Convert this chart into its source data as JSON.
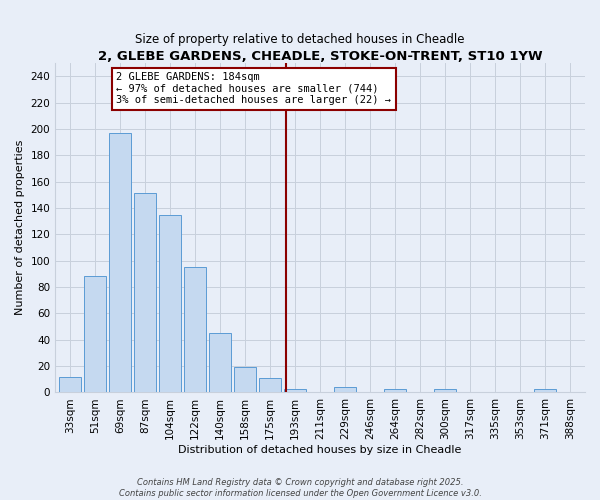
{
  "title": "2, GLEBE GARDENS, CHEADLE, STOKE-ON-TRENT, ST10 1YW",
  "subtitle": "Size of property relative to detached houses in Cheadle",
  "xlabel": "Distribution of detached houses by size in Cheadle",
  "ylabel": "Number of detached properties",
  "bar_labels": [
    "33sqm",
    "51sqm",
    "69sqm",
    "87sqm",
    "104sqm",
    "122sqm",
    "140sqm",
    "158sqm",
    "175sqm",
    "193sqm",
    "211sqm",
    "229sqm",
    "246sqm",
    "264sqm",
    "282sqm",
    "300sqm",
    "317sqm",
    "335sqm",
    "353sqm",
    "371sqm",
    "388sqm"
  ],
  "bar_values": [
    12,
    88,
    197,
    151,
    135,
    95,
    45,
    19,
    11,
    3,
    0,
    4,
    0,
    3,
    0,
    3,
    0,
    0,
    0,
    3,
    0
  ],
  "bar_color": "#c5d9f0",
  "bar_edge_color": "#5b9bd5",
  "vline_x": 8.65,
  "vline_color": "#8b0000",
  "annotation_title": "2 GLEBE GARDENS: 184sqm",
  "annotation_line1": "← 97% of detached houses are smaller (744)",
  "annotation_line2": "3% of semi-detached houses are larger (22) →",
  "annotation_box_facecolor": "#ffffff",
  "annotation_box_edgecolor": "#8b0000",
  "ylim": [
    0,
    250
  ],
  "yticks": [
    0,
    20,
    40,
    60,
    80,
    100,
    120,
    140,
    160,
    180,
    200,
    220,
    240
  ],
  "footer1": "Contains HM Land Registry data © Crown copyright and database right 2025.",
  "footer2": "Contains public sector information licensed under the Open Government Licence v3.0.",
  "bg_color": "#e8eef8",
  "grid_color": "#c8d0dc",
  "title_fontsize": 9.5,
  "subtitle_fontsize": 8.5,
  "xlabel_fontsize": 8,
  "ylabel_fontsize": 8,
  "tick_fontsize": 7.5,
  "annotation_fontsize": 7.5,
  "footer_fontsize": 6
}
